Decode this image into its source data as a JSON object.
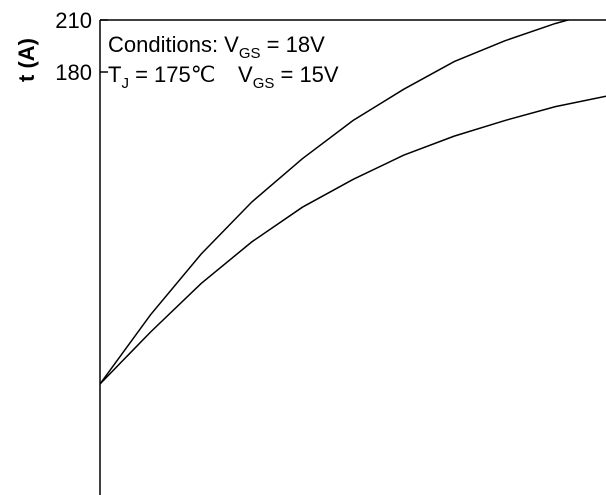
{
  "chart_data": {
    "type": "line",
    "y_label": "t (A)",
    "annotations": [
      {
        "parts": [
          "Conditions: V",
          "GS",
          " = 18V"
        ]
      },
      {
        "parts": [
          "T",
          "J",
          " = 175℃",
          "V",
          "GS",
          " = 15V"
        ]
      }
    ],
    "x": [
      0,
      1,
      2,
      3,
      4,
      5,
      6,
      7,
      8,
      9,
      10
    ],
    "xlim": [
      0,
      10
    ],
    "ylim": [
      0,
      210
    ],
    "yticks": [
      180,
      210
    ],
    "series": [
      {
        "color": "#000000",
        "values": [
          0,
          40,
          75,
          105,
          130,
          152,
          170,
          186,
          198,
          208,
          216
        ]
      },
      {
        "color": "#000000",
        "values": [
          0,
          30,
          58,
          82,
          102,
          118,
          132,
          143,
          152,
          160,
          166
        ]
      }
    ]
  }
}
